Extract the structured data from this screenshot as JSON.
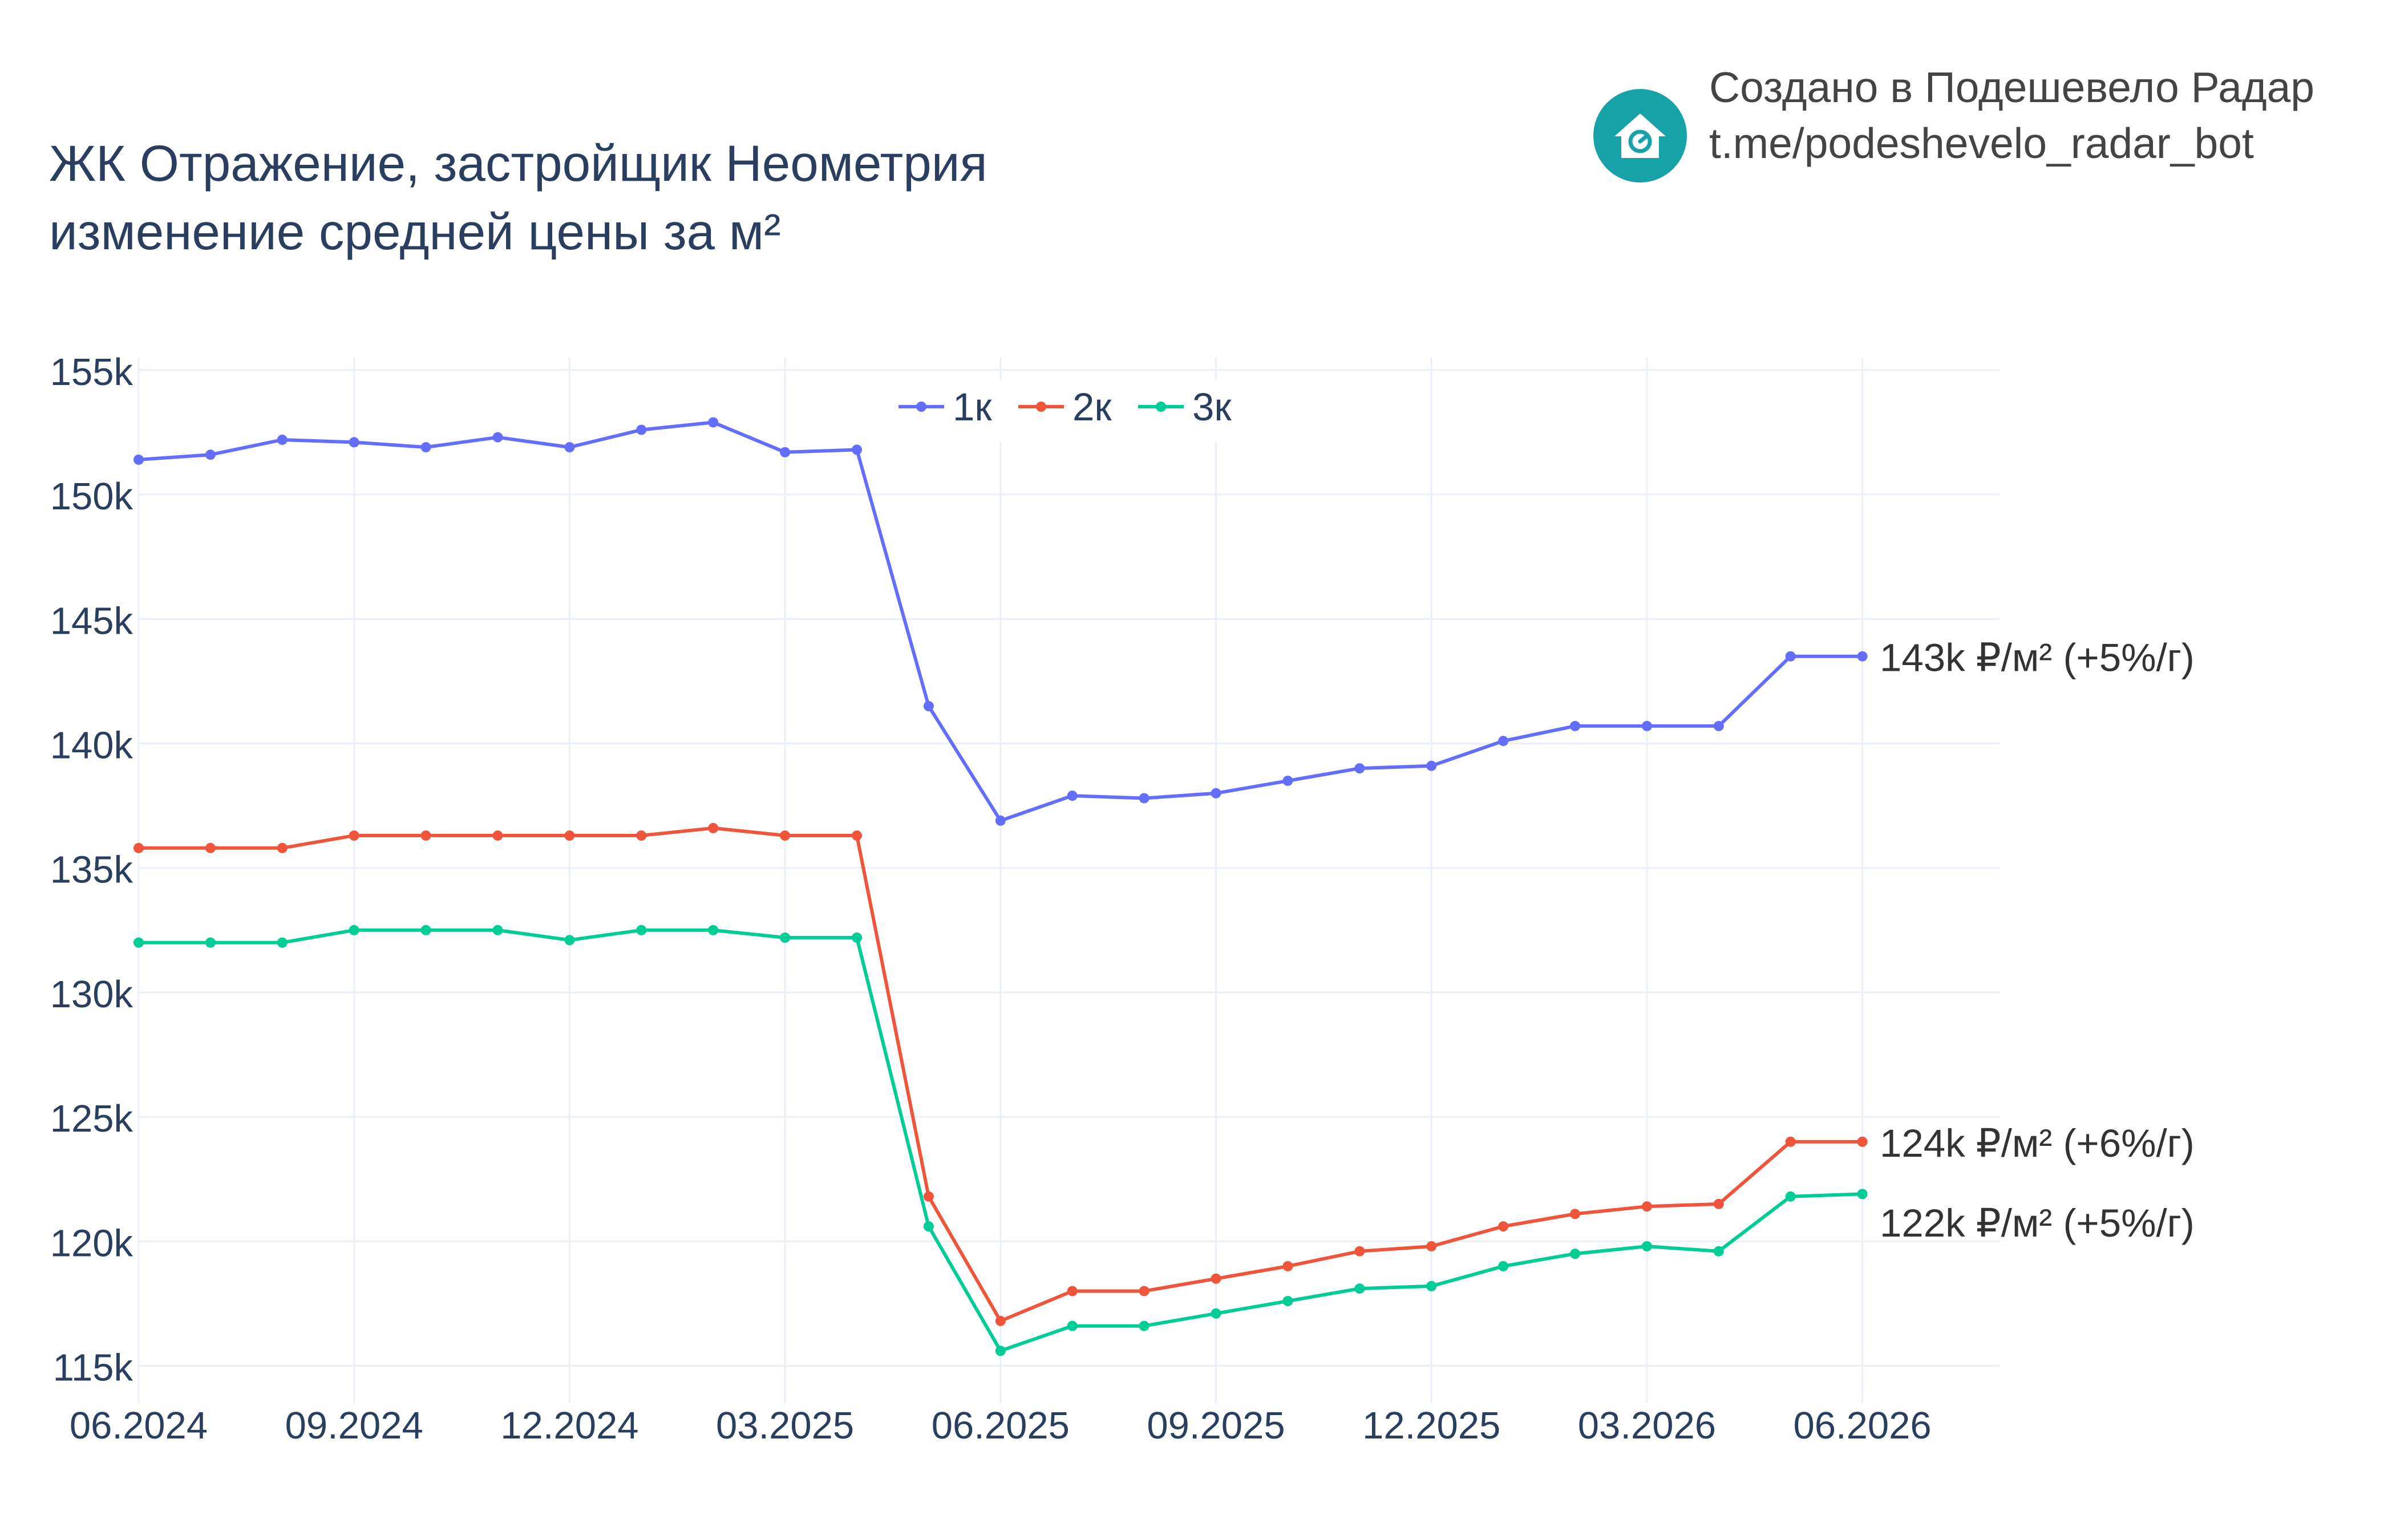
{
  "title": {
    "line1": "ЖК Отражение, застройщик Неометрия",
    "line2": "изменение средней цены за м²"
  },
  "brand": {
    "line1": "Создано в Подешевело Радар",
    "line2": "t.me/podeshevelo_radar_bot",
    "icon": "house-icon",
    "icon_color": "#17a2a8"
  },
  "chart_data": {
    "type": "line",
    "x": [
      "06.2024",
      "07.2024",
      "08.2024",
      "09.2024",
      "10.2024",
      "11.2024",
      "12.2024",
      "01.2025",
      "02.2025",
      "03.2025",
      "04.2025",
      "05.2025",
      "06.2025",
      "07.2025",
      "08.2025",
      "09.2025",
      "10.2025",
      "11.2025",
      "12.2025",
      "01.2026",
      "02.2026",
      "03.2026",
      "04.2026",
      "05.2026",
      "06.2026"
    ],
    "x_ticks": [
      "06.2024",
      "09.2024",
      "12.2024",
      "03.2025",
      "06.2025",
      "09.2025",
      "12.2025",
      "03.2026",
      "06.2026"
    ],
    "y_ticks": [
      "115k",
      "120k",
      "125k",
      "130k",
      "135k",
      "140k",
      "145k",
      "150k",
      "155k"
    ],
    "ylim": [
      113500,
      155500
    ],
    "grid": true,
    "legend_position": "top-center",
    "series": [
      {
        "name": "1к",
        "color": "#636efa",
        "values": [
          151400,
          151600,
          152200,
          152100,
          151900,
          152300,
          151900,
          152600,
          152900,
          151700,
          151800,
          141500,
          136900,
          137900,
          137800,
          138000,
          138500,
          139000,
          139100,
          140100,
          140700,
          140700,
          140700,
          143500,
          143500
        ],
        "end_label": "143k ₽/м² (+5%/г)"
      },
      {
        "name": "2к",
        "color": "#ef553b",
        "values": [
          135800,
          135800,
          135800,
          136300,
          136300,
          136300,
          136300,
          136300,
          136600,
          136300,
          136300,
          121800,
          116800,
          118000,
          118000,
          118500,
          119000,
          119600,
          119800,
          120600,
          121100,
          121400,
          121500,
          124000,
          124000
        ],
        "end_label": "124k ₽/м² (+6%/г)"
      },
      {
        "name": "3к",
        "color": "#00cc96",
        "values": [
          132000,
          132000,
          132000,
          132500,
          132500,
          132500,
          132100,
          132500,
          132500,
          132200,
          132200,
          120600,
          115600,
          116600,
          116600,
          117100,
          117600,
          118100,
          118200,
          119000,
          119500,
          119800,
          119600,
          121800,
          121900
        ],
        "end_label": "122k ₽/м² (+5%/г)"
      }
    ]
  }
}
